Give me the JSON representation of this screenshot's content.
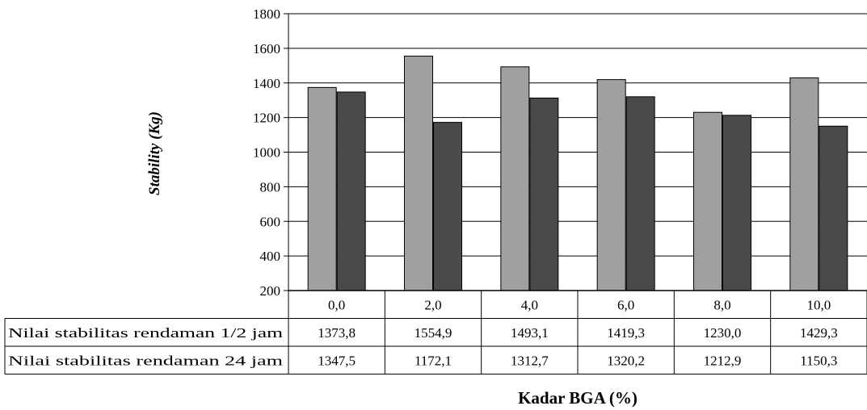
{
  "chart_data": {
    "type": "bar",
    "categories": [
      "0,0",
      "2,0",
      "4,0",
      "6,0",
      "8,0",
      "10,0"
    ],
    "series": [
      {
        "name": "Nilai stabilitas rendaman 1/2 jam",
        "values": [
          1373.8,
          1554.9,
          1493.1,
          1419.3,
          1230.0,
          1429.3
        ],
        "labels": [
          "1373,8",
          "1554,9",
          "1493,1",
          "1419,3",
          "1230,0",
          "1429,3"
        ],
        "color": "#a0a0a0"
      },
      {
        "name": "Nilai stabilitas rendaman 24 jam",
        "values": [
          1347.5,
          1172.1,
          1312.7,
          1320.2,
          1212.9,
          1150.3
        ],
        "labels": [
          "1347,5",
          "1172,1",
          "1312,7",
          "1320,2",
          "1212,9",
          "1150,3"
        ],
        "color": "#4a4a4a"
      }
    ],
    "xlabel": "Kadar BGA (%)",
    "ylabel": "Stability (Kg)",
    "ylim": [
      200,
      1800
    ],
    "yticks": [
      200,
      400,
      600,
      800,
      1000,
      1200,
      1400,
      1600,
      1800
    ],
    "grid": true,
    "legend": "data table below chart"
  }
}
